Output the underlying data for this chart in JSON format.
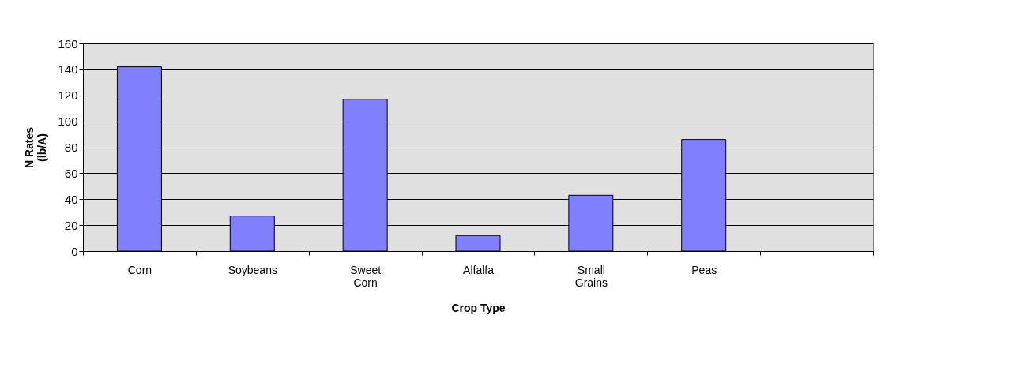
{
  "chart_data": {
    "type": "bar",
    "xlabel": "Crop Type",
    "ylabel": "N Rates (lb/A)",
    "categories": [
      "Corn",
      "Soybeans",
      "Sweet Corn",
      "Alfalfa",
      "Small Grains",
      "Peas",
      null
    ],
    "values": [
      142,
      27,
      117,
      12,
      43,
      86,
      null
    ],
    "color": "#8080ff",
    "ylim": [
      0,
      160
    ],
    "yticks": [
      0,
      20,
      40,
      60,
      80,
      100,
      120,
      140,
      160
    ],
    "grid": "y"
  }
}
